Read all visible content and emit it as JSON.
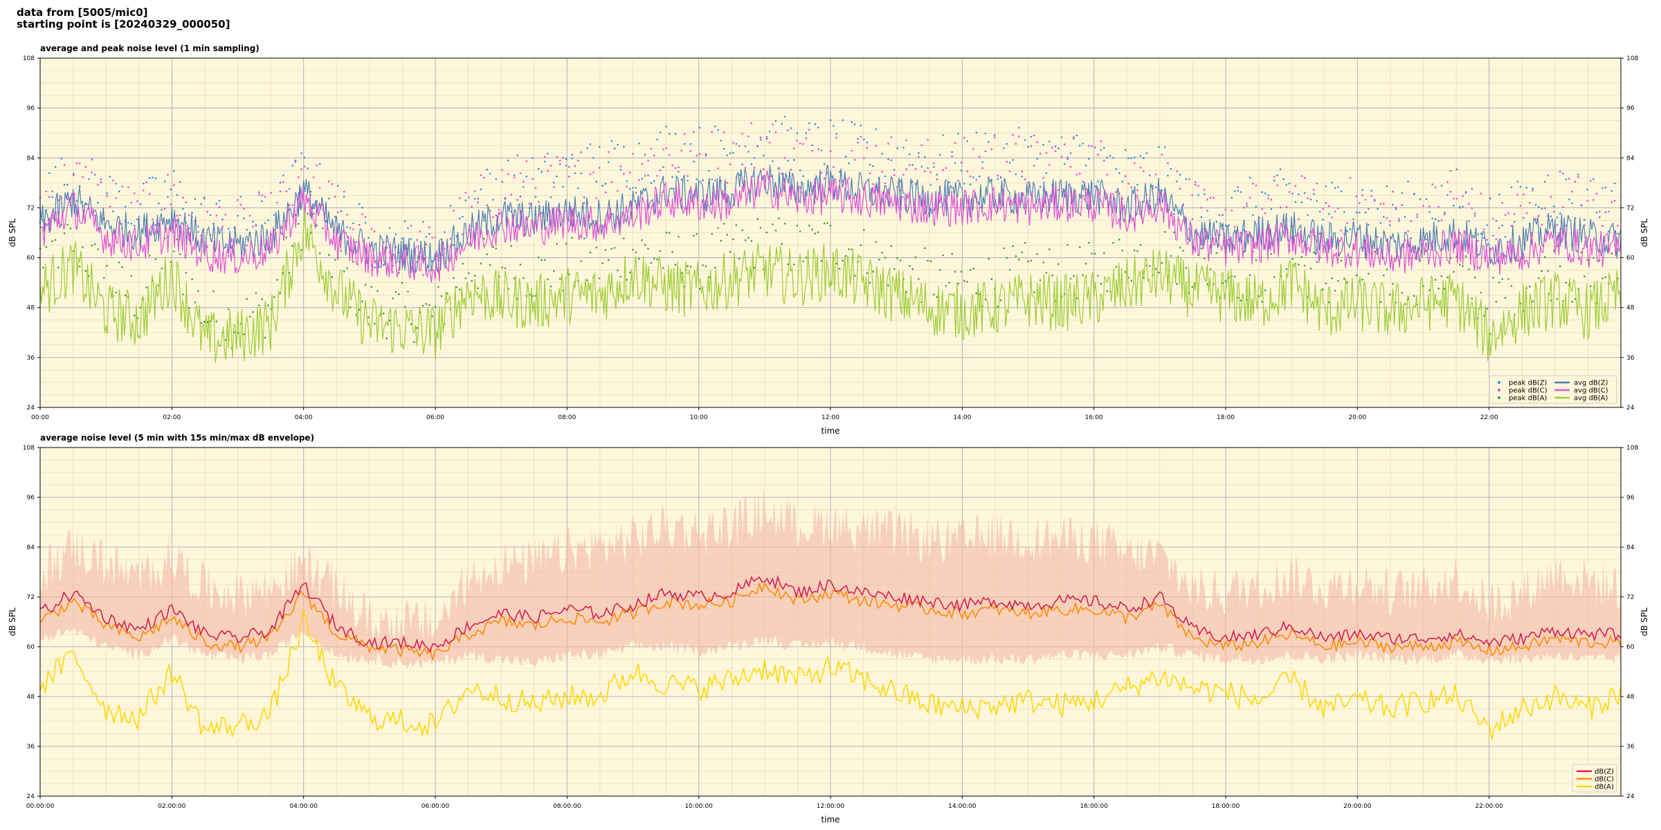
{
  "header": {
    "line1": "data from [5005/mic0]",
    "line2": "starting point is [20240329_000050]"
  },
  "colors": {
    "plot_bg": "#fff7dc",
    "avg_z": "#4a7fb5",
    "avg_c": "#e04fd6",
    "avg_a": "#9acd32",
    "peak_z": "#2a8fe0",
    "peak_c": "#ff3ccf",
    "peak_a": "#3a9a3a",
    "dbz": "#d62050",
    "dbc": "#ff8c00",
    "dba": "#ffd700",
    "envelope": "#f4b8a8"
  },
  "chart_data": [
    {
      "type": "line",
      "title": "average and peak noise level (1 min sampling)",
      "xlabel": "time",
      "ylabel": "dB SPL",
      "xlim": [
        0,
        24
      ],
      "ylim": [
        24,
        108
      ],
      "yticks": [
        24,
        36,
        48,
        60,
        72,
        84,
        96,
        108
      ],
      "xtick_labels": [
        "00:00",
        "02:00",
        "04:00",
        "06:00",
        "08:00",
        "10:00",
        "12:00",
        "14:00",
        "16:00",
        "18:00",
        "20:00",
        "22:00"
      ],
      "grid": true,
      "legend_position": "bottom-right",
      "legend": [
        "peak dB(Z)",
        "peak dB(C)",
        "peak dB(A)",
        "avg dB(Z)",
        "avg dB(C)",
        "avg dB(A)"
      ],
      "x": [
        0,
        0.5,
        1.0,
        1.5,
        2.0,
        2.5,
        3.0,
        3.5,
        4.0,
        4.5,
        5.0,
        5.5,
        6.0,
        6.5,
        7.0,
        7.5,
        8.0,
        8.5,
        9.0,
        9.5,
        10.0,
        10.5,
        11.0,
        11.5,
        12.0,
        12.5,
        13.0,
        13.5,
        14.0,
        14.5,
        15.0,
        15.5,
        16.0,
        16.5,
        17.0,
        17.5,
        18.0,
        18.5,
        19.0,
        19.5,
        20.0,
        20.5,
        21.0,
        21.5,
        22.0,
        22.5,
        23.0,
        23.5,
        24.0
      ],
      "series": [
        {
          "name": "avg dB(Z)",
          "kind": "line",
          "values": [
            68,
            74,
            68,
            66,
            70,
            64,
            63,
            65,
            76,
            66,
            62,
            61,
            60,
            66,
            70,
            69,
            71,
            70,
            72,
            76,
            75,
            76,
            79,
            76,
            78,
            76,
            75,
            74,
            74,
            75,
            74,
            75,
            75,
            72,
            75,
            66,
            64,
            66,
            67,
            64,
            65,
            63,
            64,
            66,
            62,
            64,
            67,
            65,
            64
          ]
        },
        {
          "name": "avg dB(C)",
          "kind": "line",
          "values": [
            66,
            72,
            65,
            63,
            66,
            61,
            60,
            62,
            74,
            64,
            60,
            59,
            58,
            64,
            68,
            67,
            69,
            68,
            70,
            74,
            73,
            73,
            77,
            74,
            75,
            74,
            73,
            72,
            72,
            73,
            72,
            73,
            73,
            70,
            73,
            64,
            62,
            63,
            65,
            62,
            62,
            60,
            61,
            63,
            60,
            61,
            64,
            62,
            62
          ]
        },
        {
          "name": "avg dB(A)",
          "kind": "line",
          "values": [
            52,
            58,
            47,
            45,
            56,
            40,
            41,
            44,
            67,
            52,
            44,
            43,
            42,
            52,
            50,
            49,
            51,
            51,
            56,
            53,
            52,
            55,
            57,
            55,
            57,
            54,
            51,
            48,
            47,
            48,
            50,
            49,
            50,
            53,
            56,
            52,
            51,
            49,
            54,
            47,
            49,
            47,
            49,
            50,
            41,
            47,
            50,
            47,
            51
          ]
        },
        {
          "name": "peak dB(Z)",
          "kind": "scatter",
          "values": [
            74,
            80,
            75,
            71,
            76,
            69,
            68,
            70,
            80,
            72,
            64,
            63,
            62,
            72,
            78,
            78,
            80,
            82,
            83,
            86,
            85,
            86,
            89,
            86,
            87,
            85,
            84,
            83,
            83,
            85,
            84,
            84,
            84,
            80,
            81,
            72,
            71,
            73,
            75,
            72,
            74,
            71,
            72,
            75,
            69,
            72,
            76,
            74,
            72
          ]
        },
        {
          "name": "peak dB(C)",
          "kind": "scatter",
          "values": [
            73,
            79,
            74,
            70,
            75,
            68,
            67,
            69,
            79,
            71,
            63,
            62,
            61,
            71,
            77,
            77,
            79,
            81,
            82,
            85,
            84,
            85,
            88,
            85,
            86,
            84,
            83,
            82,
            82,
            84,
            83,
            83,
            83,
            79,
            80,
            71,
            70,
            72,
            74,
            71,
            73,
            70,
            71,
            74,
            68,
            71,
            75,
            73,
            71
          ]
        },
        {
          "name": "peak dB(A)",
          "kind": "scatter",
          "values": [
            60,
            64,
            55,
            50,
            62,
            46,
            45,
            48,
            70,
            58,
            48,
            47,
            46,
            58,
            58,
            56,
            58,
            58,
            62,
            60,
            59,
            62,
            64,
            62,
            64,
            61,
            58,
            55,
            54,
            55,
            57,
            56,
            57,
            60,
            62,
            58,
            57,
            55,
            60,
            54,
            56,
            54,
            56,
            57,
            48,
            54,
            57,
            54,
            58
          ]
        }
      ]
    },
    {
      "type": "line",
      "title": "average noise level (5 min with 15s min/max dB envelope)",
      "xlabel": "time",
      "ylabel": "dB SPL",
      "xlim": [
        0,
        24
      ],
      "ylim": [
        24,
        108
      ],
      "yticks": [
        24,
        36,
        48,
        60,
        72,
        84,
        96,
        108
      ],
      "xtick_labels": [
        "00:00:00",
        "02:00:00",
        "04:00:00",
        "06:00:00",
        "08:00:00",
        "10:00:00",
        "12:00:00",
        "14:00:00",
        "16:00:00",
        "18:00:00",
        "20:00:00",
        "22:00:00"
      ],
      "grid": true,
      "legend_position": "bottom-right",
      "legend": [
        "dB(Z)",
        "dB(C)",
        "dB(A)"
      ],
      "x": [
        0,
        0.5,
        1.0,
        1.5,
        2.0,
        2.5,
        3.0,
        3.5,
        4.0,
        4.5,
        5.0,
        5.5,
        6.0,
        6.5,
        7.0,
        7.5,
        8.0,
        8.5,
        9.0,
        9.5,
        10.0,
        10.5,
        11.0,
        11.5,
        12.0,
        12.5,
        13.0,
        13.5,
        14.0,
        14.5,
        15.0,
        15.5,
        16.0,
        16.5,
        17.0,
        17.5,
        18.0,
        18.5,
        19.0,
        19.5,
        20.0,
        20.5,
        21.0,
        21.5,
        22.0,
        22.5,
        23.0,
        23.5,
        24.0
      ],
      "series": [
        {
          "name": "dB(Z)",
          "kind": "line",
          "values": [
            68,
            73,
            67,
            64,
            69,
            63,
            62,
            64,
            75,
            65,
            61,
            61,
            60,
            65,
            68,
            67,
            69,
            68,
            70,
            73,
            72,
            73,
            77,
            73,
            75,
            73,
            72,
            71,
            70,
            71,
            70,
            71,
            71,
            69,
            72,
            64,
            62,
            63,
            65,
            62,
            63,
            62,
            62,
            63,
            61,
            62,
            64,
            63,
            63
          ]
        },
        {
          "name": "dB(C)",
          "kind": "line",
          "values": [
            66,
            71,
            65,
            62,
            67,
            61,
            60,
            62,
            73,
            63,
            60,
            59,
            58,
            63,
            66,
            65,
            67,
            66,
            68,
            71,
            70,
            71,
            75,
            71,
            73,
            71,
            70,
            69,
            68,
            69,
            68,
            69,
            69,
            67,
            70,
            62,
            60,
            61,
            63,
            60,
            61,
            60,
            60,
            61,
            59,
            60,
            62,
            61,
            61
          ]
        },
        {
          "name": "dB(A)",
          "kind": "line",
          "values": [
            50,
            58,
            45,
            43,
            54,
            40,
            41,
            44,
            66,
            50,
            43,
            42,
            41,
            50,
            48,
            46,
            48,
            48,
            54,
            51,
            50,
            52,
            55,
            52,
            55,
            52,
            49,
            46,
            45,
            46,
            47,
            46,
            47,
            50,
            53,
            50,
            49,
            47,
            52,
            45,
            47,
            45,
            47,
            48,
            40,
            45,
            48,
            45,
            49
          ]
        }
      ],
      "envelope": {
        "name": "min/max envelope",
        "min": [
          62,
          64,
          60,
          58,
          62,
          58,
          57,
          58,
          64,
          58,
          57,
          56,
          56,
          58,
          57,
          56,
          58,
          58,
          60,
          60,
          59,
          60,
          62,
          60,
          61,
          60,
          58,
          57,
          57,
          57,
          57,
          58,
          58,
          58,
          60,
          58,
          57,
          57,
          58,
          57,
          58,
          57,
          57,
          58,
          57,
          57,
          58,
          57,
          57
        ],
        "max": [
          78,
          84,
          80,
          76,
          82,
          74,
          73,
          74,
          80,
          74,
          66,
          66,
          65,
          76,
          80,
          80,
          83,
          84,
          86,
          89,
          88,
          89,
          93,
          89,
          90,
          88,
          87,
          86,
          85,
          87,
          86,
          86,
          86,
          82,
          82,
          74,
          73,
          75,
          77,
          74,
          76,
          73,
          74,
          77,
          70,
          73,
          78,
          76,
          74
        ]
      }
    }
  ]
}
